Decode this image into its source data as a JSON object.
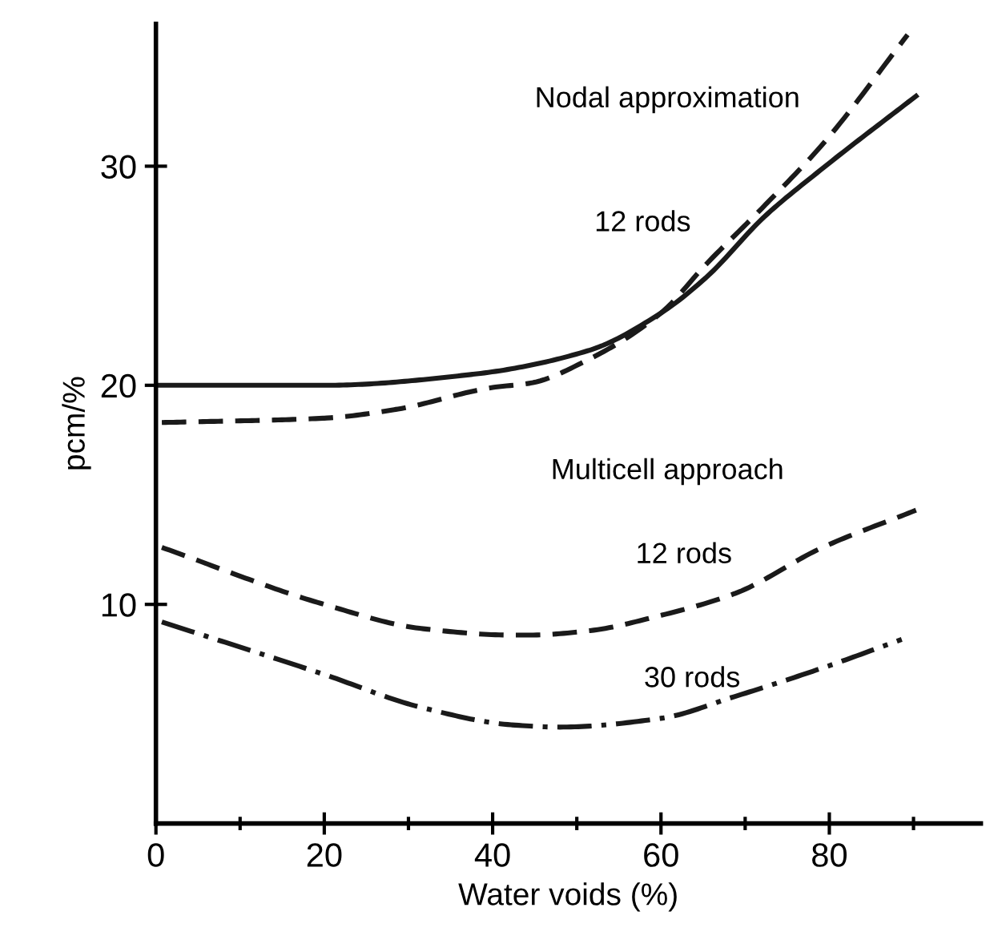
{
  "chart_data": {
    "type": "line",
    "xlabel": "Water voids (%)",
    "ylabel": "pcm/%",
    "xlim": [
      0,
      98
    ],
    "ylim": [
      0,
      36.5
    ],
    "xticks": [
      0,
      {
        "value": 10,
        "label": null
      },
      20,
      {
        "value": 30,
        "label": null
      },
      40,
      {
        "value": 50,
        "label": null
      },
      60,
      {
        "value": 70,
        "label": null
      },
      80,
      {
        "value": 90,
        "label": null
      }
    ],
    "yticks": [
      10,
      20,
      30
    ],
    "grid": false,
    "marker": "none",
    "series": [
      {
        "color": "#1a1a1a",
        "line_style": "solid",
        "x": [
          0,
          20,
          37.6,
          51.5,
          60,
          65.3,
          72.3,
          79.2,
          90.3
        ],
        "values": [
          20.0,
          20.0,
          20.5,
          21.6,
          23.3,
          24.9,
          27.7,
          29.9,
          33.2
        ]
      },
      {
        "color": "#1a1a1a",
        "line_style": "dashed",
        "x": [
          0.7,
          20,
          28.5,
          40,
          44.5,
          51.5,
          60,
          65.3,
          72.3,
          79.2,
          89.3
        ],
        "values": [
          18.3,
          18.5,
          18.9,
          19.9,
          20.1,
          21.2,
          23.3,
          25.5,
          28.2,
          31.0,
          36.0
        ]
      },
      {
        "color": "#1a1a1a",
        "line_style": "dashed",
        "x": [
          0.7,
          20,
          31.5,
          42.3,
          44.5,
          51.5,
          60,
          68.8,
          79.2,
          90.3
        ],
        "values": [
          12.6,
          10.0,
          8.9,
          8.6,
          8.6,
          8.8,
          9.5,
          10.5,
          12.6,
          14.3
        ]
      },
      {
        "color": "#1a1a1a",
        "line_style": "dashdot",
        "x": [
          0.7,
          20,
          31.5,
          42.3,
          48,
          60,
          68.8,
          79.2,
          88.6
        ],
        "values": [
          9.2,
          6.8,
          5.3,
          4.5,
          4.4,
          4.8,
          5.8,
          7.1,
          8.4
        ]
      }
    ],
    "annotations": [
      "Nodal approximation",
      "12 rods",
      "Multicell approach",
      "12 rods",
      "30 rods"
    ]
  }
}
